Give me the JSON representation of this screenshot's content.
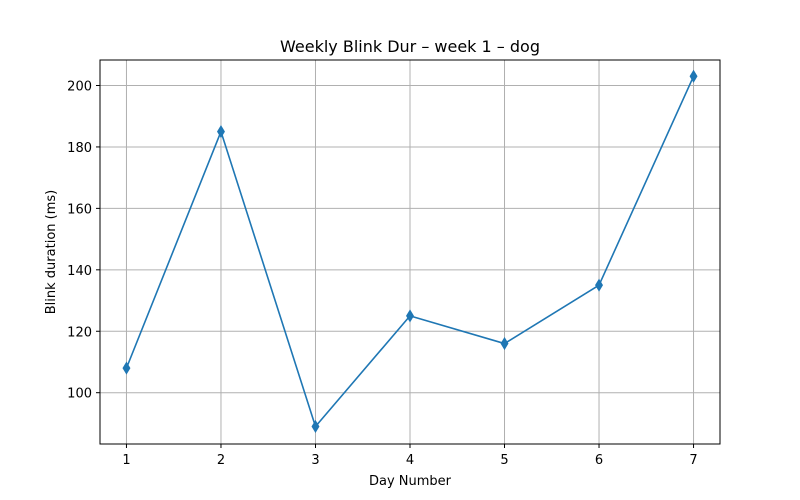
{
  "chart_data": {
    "type": "line",
    "title": "Weekly Blink Dur – week 1 – dog",
    "xlabel": "Day Number",
    "ylabel": "Blink duration (ms)",
    "x": [
      1,
      2,
      3,
      4,
      5,
      6,
      7
    ],
    "series": [
      {
        "values": [
          108,
          185,
          89,
          125,
          116,
          135,
          203
        ],
        "color": "#1f77b4",
        "marker": "thin-diamond"
      }
    ],
    "xticks": [
      1,
      2,
      3,
      4,
      5,
      6,
      7
    ],
    "yticks": [
      100,
      120,
      140,
      160,
      180,
      200
    ],
    "xlim": [
      0.72,
      7.28
    ],
    "ylim": [
      83.3,
      208.3
    ],
    "grid": true,
    "grid_color": "#b0b0b0"
  }
}
